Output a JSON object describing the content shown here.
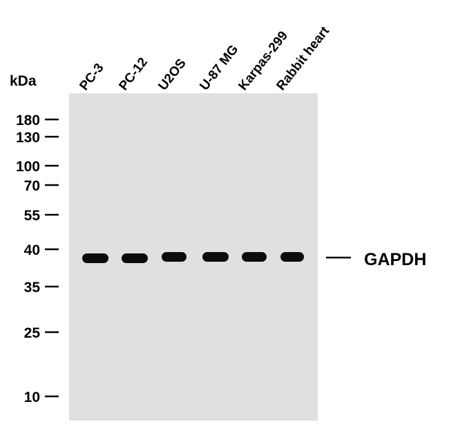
{
  "unit_label": "kDa",
  "markers": [
    "180",
    "130",
    "100",
    "70",
    "55",
    "40",
    "35",
    "25",
    "10"
  ],
  "lanes": [
    "PC-3",
    "PC-12",
    "U2OS",
    "U-87 MG",
    "Karpas-299",
    "Rabbit heart"
  ],
  "band_label": "GAPDH"
}
